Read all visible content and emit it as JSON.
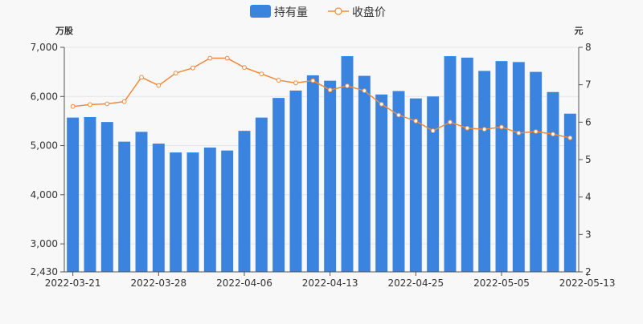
{
  "chart_data": {
    "type": "bar+line",
    "legend": {
      "position": "top-center",
      "items": [
        "持有量",
        "收盘价"
      ]
    },
    "y_left": {
      "unit": "万股",
      "min": 2430,
      "max": 7000,
      "ticks": [
        2430,
        3000,
        4000,
        5000,
        6000,
        7000
      ],
      "tick_labels": [
        "2,430",
        "3,000",
        "4,000",
        "5,000",
        "6,000",
        "7,000"
      ]
    },
    "y_right": {
      "unit": "元",
      "min": 2,
      "max": 8,
      "ticks": [
        2,
        3,
        4,
        5,
        6,
        7,
        8
      ]
    },
    "x_tick_labels": [
      "2022-03-21",
      "2022-03-28",
      "2022-04-06",
      "2022-04-13",
      "2022-04-25",
      "2022-05-05",
      "2022-05-13"
    ],
    "x_tick_label_indices": [
      0,
      5,
      10,
      15,
      20,
      25,
      30
    ],
    "grid": "horizontal",
    "series": [
      {
        "name": "持有量",
        "type": "bar",
        "axis": "left",
        "color": "#3a84e0",
        "values": [
          5570,
          5580,
          5480,
          5080,
          5280,
          5040,
          4860,
          4860,
          4960,
          4900,
          5300,
          5570,
          5970,
          6120,
          6430,
          6320,
          6820,
          6420,
          6040,
          6110,
          5960,
          6000,
          6820,
          6790,
          6520,
          6720,
          6700,
          6500,
          6090,
          5650
        ]
      },
      {
        "name": "收盘价",
        "type": "line",
        "axis": "right",
        "color": "#ef8a3f",
        "values": [
          6.42,
          6.47,
          6.49,
          6.55,
          7.2,
          6.98,
          7.31,
          7.45,
          7.71,
          7.71,
          7.46,
          7.29,
          7.12,
          7.05,
          7.11,
          6.86,
          6.97,
          6.84,
          6.48,
          6.19,
          6.03,
          5.77,
          6.0,
          5.84,
          5.81,
          5.87,
          5.71,
          5.75,
          5.68,
          5.58
        ]
      }
    ]
  }
}
